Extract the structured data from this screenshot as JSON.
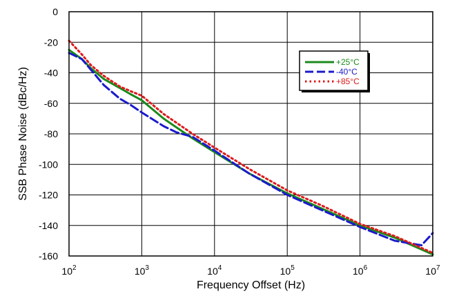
{
  "chart_data": {
    "type": "line",
    "title": "",
    "xlabel": "Frequency Offset (Hz)",
    "ylabel": "SSB Phase Noise (dBc/Hz)",
    "xscale": "log",
    "xlim": [
      100,
      10000000
    ],
    "ylim": [
      -160,
      0
    ],
    "grid": true,
    "legend_position": "top-right",
    "x_ticks": [
      {
        "base": "10",
        "exp": "2",
        "value": 100
      },
      {
        "base": "10",
        "exp": "3",
        "value": 1000
      },
      {
        "base": "10",
        "exp": "4",
        "value": 10000
      },
      {
        "base": "10",
        "exp": "5",
        "value": 100000
      },
      {
        "base": "10",
        "exp": "6",
        "value": 1000000
      },
      {
        "base": "10",
        "exp": "7",
        "value": 10000000
      }
    ],
    "y_ticks": [
      0,
      -20,
      -40,
      -60,
      -80,
      -100,
      -120,
      -140,
      -160
    ],
    "series": [
      {
        "name": "+25°C",
        "color": "#1a8a1a",
        "style": "solid",
        "x": [
          100,
          150,
          200,
          300,
          500,
          700,
          1000,
          2000,
          5000,
          10000,
          30000,
          100000,
          300000,
          1000000,
          3000000,
          10000000
        ],
        "y": [
          -25,
          -31,
          -37,
          -44,
          -50,
          -54,
          -58,
          -70,
          -83,
          -92,
          -106,
          -119,
          -129,
          -140,
          -148,
          -159
        ]
      },
      {
        "name": "-40°C",
        "color": "#1a1acc",
        "style": "dashed",
        "x": [
          100,
          150,
          200,
          300,
          500,
          700,
          1000,
          2000,
          3000,
          5000,
          10000,
          30000,
          100000,
          300000,
          1000000,
          3000000,
          7000000,
          10000000
        ],
        "y": [
          -27,
          -31,
          -38,
          -48,
          -57,
          -61,
          -66,
          -75,
          -79,
          -82,
          -91,
          -106,
          -120,
          -130,
          -141,
          -150,
          -153,
          -145
        ]
      },
      {
        "name": "+85°C",
        "color": "#dd1a1a",
        "style": "dotted",
        "x": [
          100,
          150,
          200,
          300,
          500,
          700,
          1000,
          2000,
          5000,
          10000,
          30000,
          100000,
          300000,
          1000000,
          3000000,
          10000000
        ],
        "y": [
          -19,
          -28,
          -35,
          -42,
          -49,
          -52,
          -55,
          -67,
          -80,
          -89,
          -103,
          -117,
          -127,
          -139,
          -147,
          -158
        ]
      }
    ]
  }
}
